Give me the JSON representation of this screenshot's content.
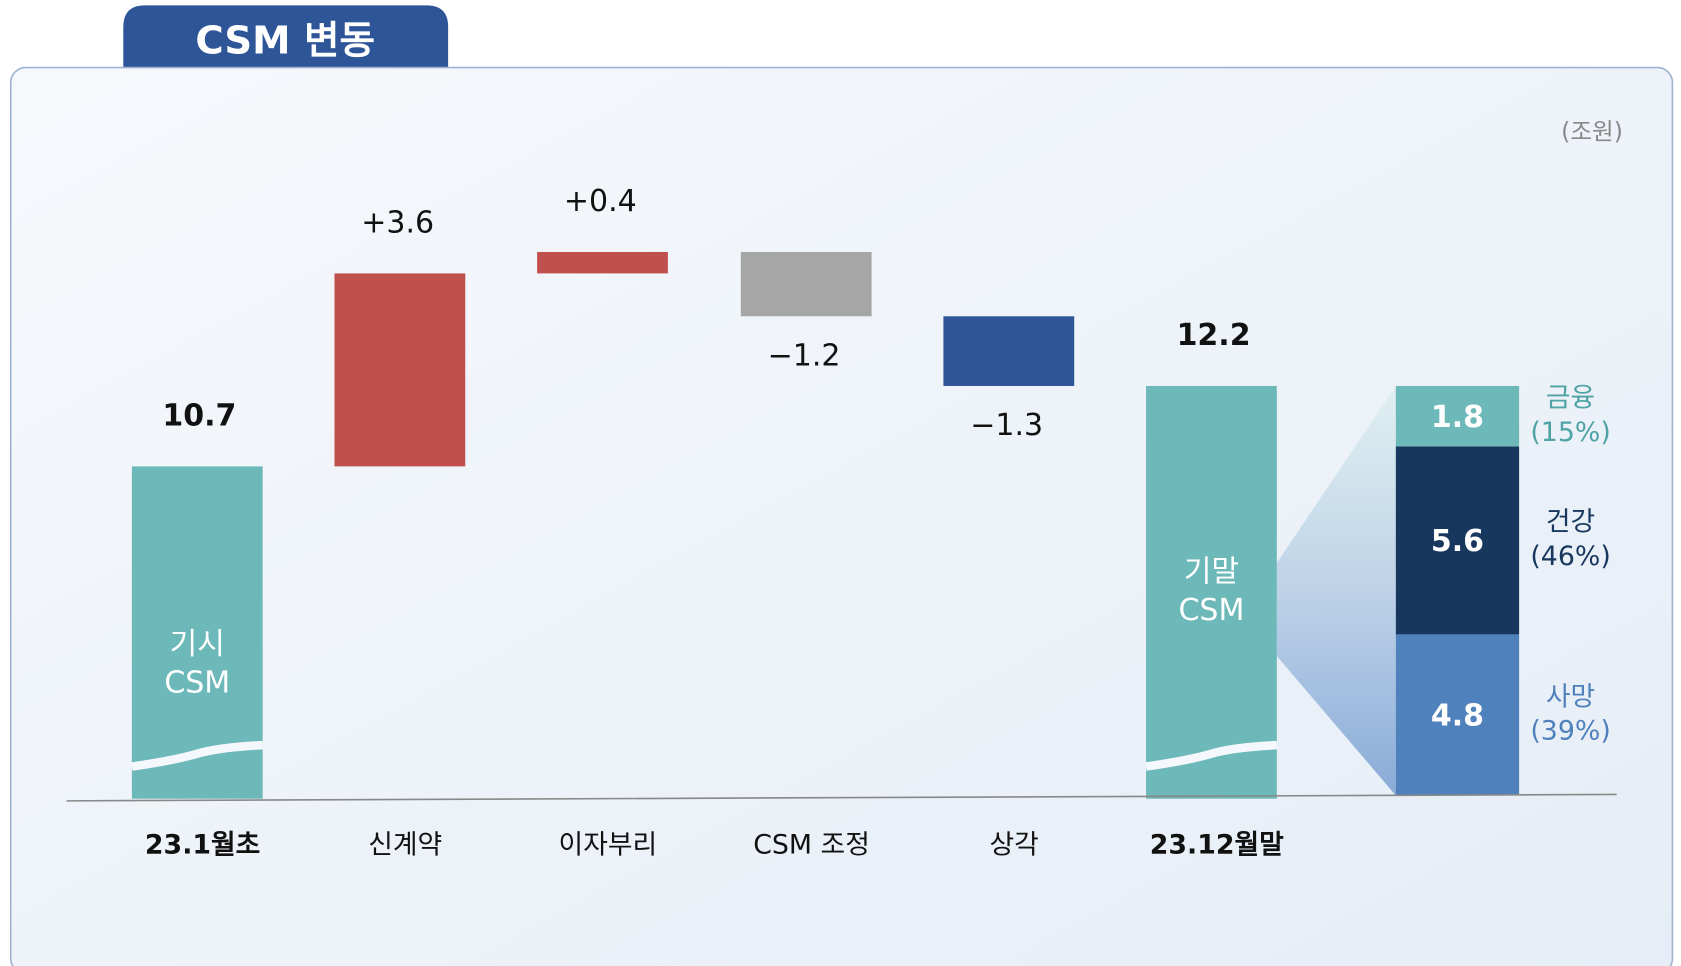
{
  "chart_data": {
    "type": "waterfall",
    "title": "CSM 변동",
    "unit": "(조원)",
    "categories": [
      "23.1월초",
      "신계약",
      "이자부리",
      "CSM 조정",
      "상각",
      "23.12월말"
    ],
    "values": [
      10.7,
      3.6,
      0.4,
      -1.2,
      -1.3,
      12.2
    ],
    "value_labels": [
      "10.7",
      "+3.6",
      "+0.4",
      "−1.2",
      "−1.3",
      "12.2"
    ],
    "kinds": [
      "total",
      "change",
      "change",
      "change",
      "change",
      "total"
    ],
    "colors": [
      "#6db8b9",
      "#c0504d",
      "#c0504d",
      "#a6a6a6",
      "#2e5597",
      "#6db8b9"
    ],
    "inner_labels": [
      [
        "기시",
        "CSM"
      ],
      null,
      null,
      null,
      null,
      [
        "기말",
        "CSM"
      ]
    ],
    "ylim": [
      4.5,
      15
    ],
    "breakdown": {
      "names": [
        "사망",
        "건강",
        "금융"
      ],
      "values": [
        4.8,
        5.6,
        1.8
      ],
      "percents": [
        39,
        46,
        15
      ],
      "percent_labels": [
        "(39%)",
        "(46%)",
        "(15%)"
      ],
      "colors": [
        "#4f81bd",
        "#17375e",
        "#6db8b9"
      ],
      "name_colors": [
        "#4f81bd",
        "#17375e",
        "#4fa3a5"
      ]
    }
  }
}
